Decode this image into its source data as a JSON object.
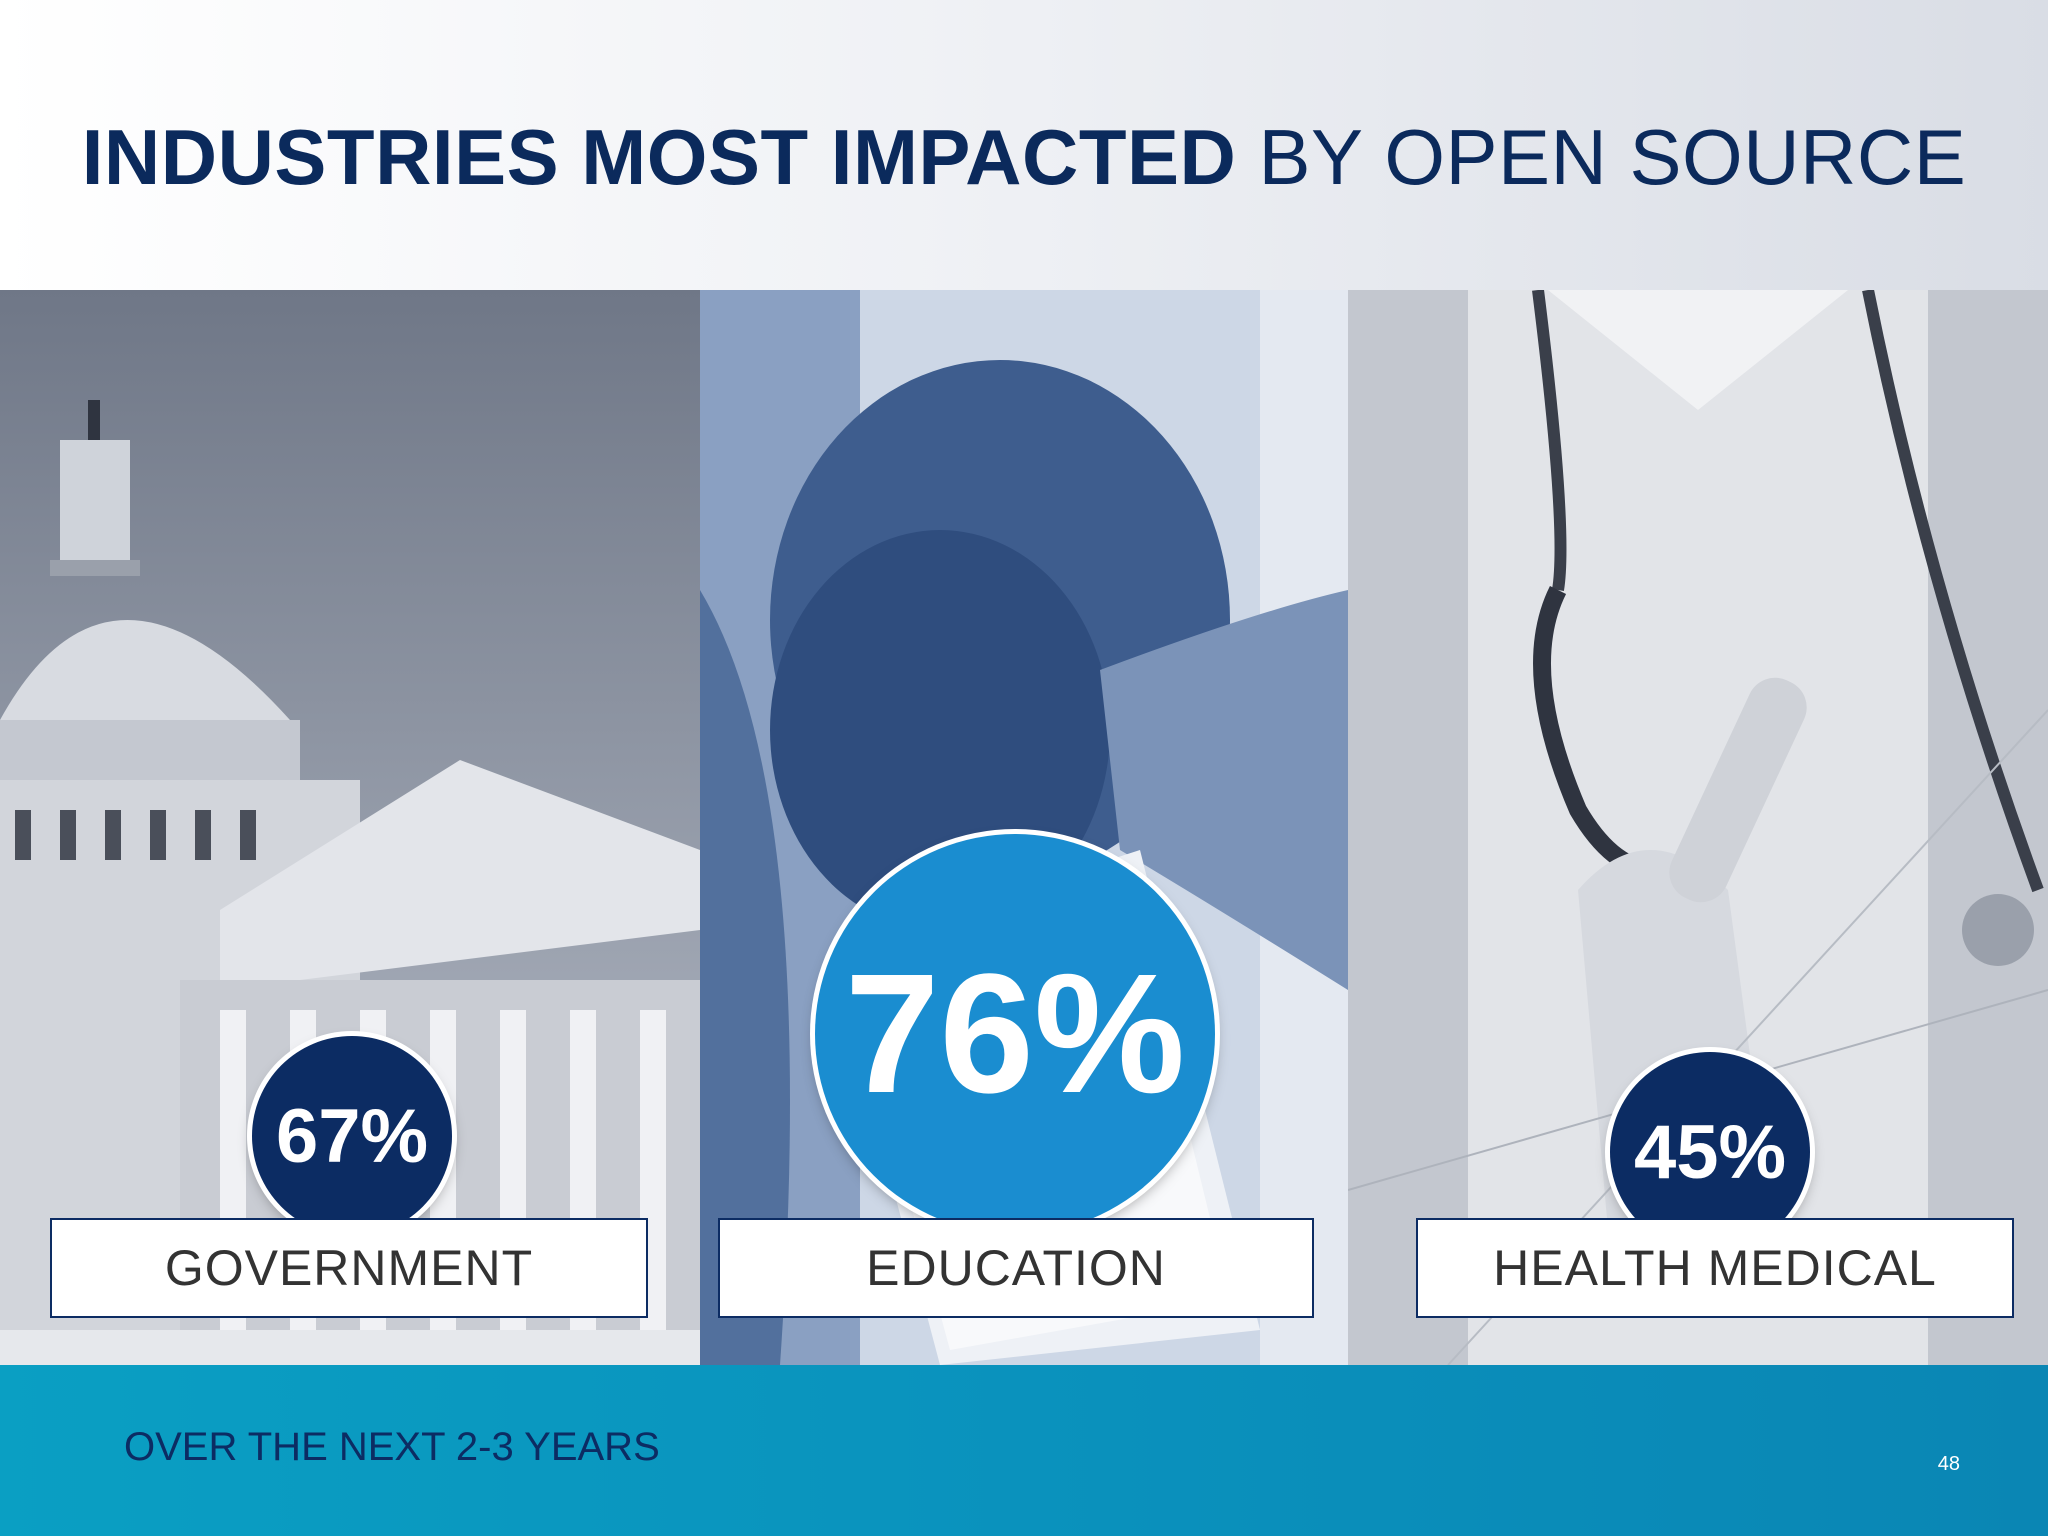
{
  "title": {
    "bold_part": "INDUSTRIES MOST IMPACTED",
    "regular_part": "BY OPEN SOURCE"
  },
  "panels": [
    {
      "percent": "67%",
      "label": "GOVERNMENT",
      "image": "capitol-building-photo"
    },
    {
      "percent": "76%",
      "label": "EDUCATION",
      "image": "student-with-tablet-photo"
    },
    {
      "percent": "45%",
      "label": "HEALTH MEDICAL",
      "image": "doctor-with-stethoscope-photo"
    }
  ],
  "footer": {
    "note": "OVER THE NEXT 2-3 YEARS",
    "page_number": "48"
  },
  "colors": {
    "title": "#0b2a5c",
    "badge_dark": "#0c2c63",
    "badge_highlight": "#1a8dd0",
    "footer_band": "#0a92bd"
  }
}
